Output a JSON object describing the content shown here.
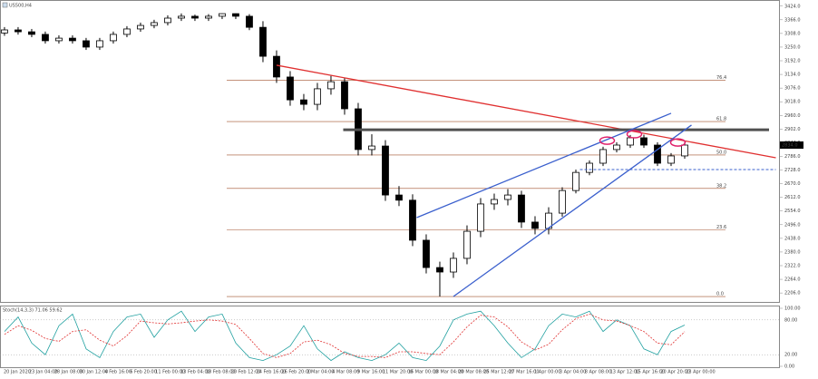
{
  "chart_data": [
    {
      "type": "candlestick",
      "title": "US500,H4",
      "xlim": [
        -0.33,
        57
      ],
      "ylim": [
        2168,
        3450
      ],
      "yticks": [
        {
          "value": 3424,
          "label": "3424.0"
        },
        {
          "value": 3366,
          "label": "3366.0"
        },
        {
          "value": 3308,
          "label": "3308.0"
        },
        {
          "value": 3250,
          "label": "3250.0"
        },
        {
          "value": 3192,
          "label": "3192.0"
        },
        {
          "value": 3134,
          "label": "3134.0"
        },
        {
          "value": 3076,
          "label": "3076.0"
        },
        {
          "value": 3018,
          "label": "3018.0"
        },
        {
          "value": 2960,
          "label": "2960.0"
        },
        {
          "value": 2902,
          "label": "2902.0"
        },
        {
          "value": 2844,
          "label": "2844.0"
        },
        {
          "value": 2786,
          "label": "2786.0"
        },
        {
          "value": 2728,
          "label": "2728.0"
        },
        {
          "value": 2670,
          "label": "2670.0"
        },
        {
          "value": 2612,
          "label": "2612.0"
        },
        {
          "value": 2554,
          "label": "2554.0"
        },
        {
          "value": 2496,
          "label": "2496.0"
        },
        {
          "value": 2438,
          "label": "2438.0"
        },
        {
          "value": 2380,
          "label": "2380.0"
        },
        {
          "value": 2322,
          "label": "2322.0"
        },
        {
          "value": 2264,
          "label": "2264.0"
        },
        {
          "value": 2206,
          "label": "2206.0"
        }
      ],
      "x_axis_labels": [
        "20 Jan 2020",
        "23 Jan 04:00",
        "28 Jan 08:00",
        "30 Jan 12:00",
        "4 Feb 16:00",
        "6 Feb 20:00",
        "11 Feb 00:00",
        "13 Feb 04:00",
        "18 Feb 08:00",
        "20 Feb 12:00",
        "24 Feb 16:00",
        "26 Feb 20:00",
        "2 Mar 04:00",
        "4 Mar 08:00",
        "9 Mar 16:00",
        "11 Mar 20:00",
        "16 Mar 00:00",
        "18 Mar 04:00",
        "20 Mar 08:00",
        "25 Mar 12:00",
        "27 Mar 16:00",
        "1 Apr 00:00",
        "3 Apr 04:00",
        "8 Apr 08:00",
        "13 Apr 12:00",
        "15 Apr 16:00",
        "20 Apr 20:00",
        "23 Apr 00:00"
      ],
      "open": [
        3310,
        3323,
        3315,
        3304,
        3277,
        3288,
        3277,
        3250,
        3277,
        3304,
        3327,
        3342,
        3354,
        3373,
        3381,
        3373,
        3381,
        3392,
        3381,
        3334,
        3211,
        3123,
        3026,
        3007,
        3073,
        3103,
        2988,
        2815,
        2830,
        2622,
        2600,
        2430,
        2314,
        2295,
        2353,
        2468,
        2584,
        2603,
        2622,
        2507,
        2480,
        2545,
        2641,
        2718,
        2757,
        2815,
        2834,
        2865,
        2834,
        2757,
        2788
      ],
      "high": [
        3335,
        3335,
        3327,
        3316,
        3300,
        3300,
        3289,
        3289,
        3316,
        3339,
        3354,
        3366,
        3385,
        3393,
        3388,
        3390,
        3393,
        3393,
        3390,
        3360,
        3236,
        3148,
        3051,
        3098,
        3128,
        3120,
        3013,
        2880,
        2855,
        2660,
        2625,
        2455,
        2339,
        2378,
        2493,
        2609,
        2628,
        2647,
        2640,
        2532,
        2570,
        2655,
        2730,
        2769,
        2827,
        2846,
        2877,
        2878,
        2846,
        2800,
        2846
      ],
      "low": [
        3298,
        3303,
        3292,
        3265,
        3265,
        3265,
        3238,
        3238,
        3265,
        3292,
        3315,
        3330,
        3342,
        3361,
        3361,
        3361,
        3369,
        3369,
        3322,
        3186,
        3098,
        3001,
        2982,
        2982,
        3048,
        2963,
        2790,
        2790,
        2597,
        2575,
        2405,
        2289,
        2191,
        2270,
        2328,
        2443,
        2559,
        2578,
        2482,
        2455,
        2455,
        2530,
        2629,
        2706,
        2745,
        2803,
        2822,
        2822,
        2745,
        2745,
        2776
      ],
      "close": [
        3323,
        3315,
        3304,
        3277,
        3288,
        3277,
        3250,
        3277,
        3304,
        3327,
        3342,
        3354,
        3373,
        3381,
        3373,
        3381,
        3392,
        3381,
        3334,
        3211,
        3123,
        3026,
        3007,
        3073,
        3103,
        2988,
        2815,
        2830,
        2622,
        2600,
        2430,
        2314,
        2295,
        2353,
        2468,
        2584,
        2603,
        2622,
        2507,
        2480,
        2545,
        2641,
        2718,
        2757,
        2815,
        2834,
        2865,
        2834,
        2757,
        2788,
        2834
      ],
      "current_price": {
        "value": 2834,
        "label": "2834.0"
      },
      "fib_levels": [
        {
          "label": "76.4",
          "price": 3109
        },
        {
          "label": "61.8",
          "price": 2934
        },
        {
          "label": "50.0",
          "price": 2792
        },
        {
          "label": "38.2",
          "price": 2650
        },
        {
          "label": "23.6",
          "price": 2475
        },
        {
          "label": "0.0",
          "price": 2191
        }
      ],
      "lines": [
        {
          "color": "#e03030",
          "x": [
            20,
            56.7
          ],
          "y": [
            3173,
            2780
          ]
        },
        {
          "color": "#505050",
          "x": [
            24.9,
            56.2
          ],
          "y": [
            2899,
            2899
          ]
        },
        {
          "color": "#3a5fcd",
          "x": [
            30.3,
            49
          ],
          "y": [
            2526,
            2969
          ]
        },
        {
          "color": "#3a5fcd",
          "x": [
            33,
            50.5
          ],
          "y": [
            2191,
            2919
          ]
        },
        {
          "color": "#3a5fcd",
          "dashed": true,
          "x": [
            42.3,
            56.7
          ],
          "y": [
            2730,
            2730
          ]
        }
      ],
      "highlights": [
        {
          "x": 44.3,
          "y": 2853
        },
        {
          "x": 46.3,
          "y": 2880
        },
        {
          "x": 49.5,
          "y": 2845
        }
      ]
    },
    {
      "type": "line",
      "title": "Stoch(14,3,3) 71.06 59.62",
      "ylim": [
        0,
        100
      ],
      "yticks": [
        {
          "value": 100,
          "label": "100.00"
        },
        {
          "value": 80,
          "label": "80.00"
        },
        {
          "value": 20,
          "label": "20.00"
        },
        {
          "value": 0,
          "label": "0.00"
        }
      ],
      "series": [
        {
          "color": "#20a0a0",
          "values": [
            60,
            85,
            40,
            20,
            70,
            90,
            30,
            15,
            60,
            85,
            90,
            50,
            80,
            95,
            60,
            85,
            90,
            40,
            15,
            10,
            20,
            35,
            70,
            30,
            10,
            25,
            15,
            10,
            20,
            40,
            15,
            10,
            35,
            80,
            90,
            95,
            70,
            40,
            15,
            30,
            70,
            90,
            85,
            95,
            60,
            80,
            70,
            30,
            20,
            60,
            71.06
          ]
        },
        {
          "color": "#e03030",
          "dashed": true,
          "values": [
            55,
            70,
            62,
            48,
            43,
            60,
            63,
            45,
            35,
            53,
            78,
            75,
            73,
            75,
            78,
            80,
            78,
            72,
            48,
            22,
            15,
            22,
            42,
            45,
            37,
            22,
            17,
            17,
            15,
            25,
            25,
            22,
            20,
            42,
            68,
            88,
            85,
            68,
            42,
            28,
            38,
            63,
            82,
            90,
            80,
            78,
            70,
            60,
            40,
            37,
            59.62
          ]
        }
      ]
    }
  ]
}
